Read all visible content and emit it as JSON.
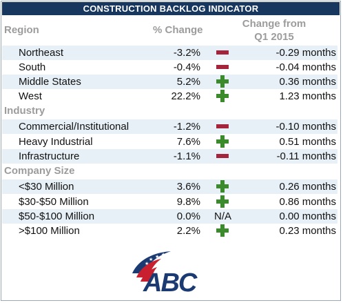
{
  "title": "CONSTRUCTION BACKLOG INDICATOR",
  "headers": {
    "region": "Region",
    "pct_change": "% Change",
    "change_line1": "Change from",
    "change_line2": "Q1 2015"
  },
  "sections": {
    "industry": "Industry",
    "company_size": "Company Size"
  },
  "rows": [
    {
      "label": "Northeast",
      "pct": "-3.2%",
      "indicator": "minus",
      "change": "-0.29 months"
    },
    {
      "label": "South",
      "pct": "-0.4%",
      "indicator": "minus",
      "change": "-0.04 months"
    },
    {
      "label": "Middle States",
      "pct": "5.2%",
      "indicator": "plus",
      "change": "0.36 months"
    },
    {
      "label": "West",
      "pct": "22.2%",
      "indicator": "plus",
      "change": "1.23 months"
    },
    {
      "label": "Commercial/Institutional",
      "pct": "-1.2%",
      "indicator": "minus",
      "change": "-0.10 months"
    },
    {
      "label": "Heavy Industrial",
      "pct": "7.6%",
      "indicator": "plus",
      "change": "0.51 months"
    },
    {
      "label": "Infrastructure",
      "pct": "-1.1%",
      "indicator": "minus",
      "change": "-0.11 months"
    },
    {
      "label": "<$30 Million",
      "pct": "3.6%",
      "indicator": "plus",
      "change": "0.26 months"
    },
    {
      "label": "$30-$50 Million",
      "pct": "9.8%",
      "indicator": "plus",
      "change": "0.86 months"
    },
    {
      "label": "$50-$100 Million",
      "pct": "0.0%",
      "indicator": "N/A",
      "change": "0.00 months"
    },
    {
      "label": ">$100 Million",
      "pct": "2.2%",
      "indicator": "plus",
      "change": "0.23 months"
    }
  ],
  "logo": {
    "text": "ABC"
  },
  "colors": {
    "title_bar": "#17375e",
    "header_text": "#9c9c9c",
    "row_shade": "#e7f0f7",
    "minus": "#a3243b",
    "plus": "#3b8a2c"
  },
  "icons": {
    "minus": "minus-icon",
    "plus": "plus-icon"
  }
}
